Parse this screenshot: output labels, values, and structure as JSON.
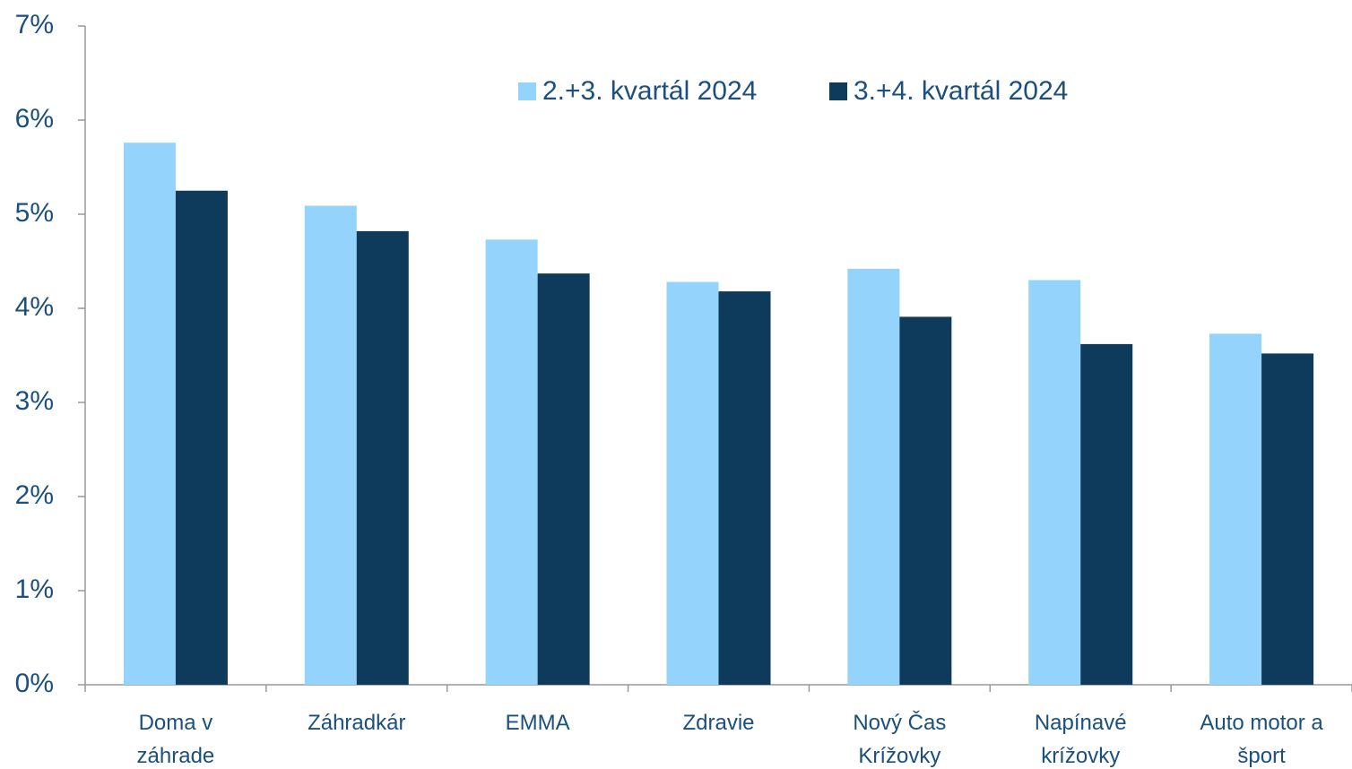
{
  "chart_data": {
    "type": "bar",
    "categories": [
      "Doma v\nzáhrade",
      "Záhradkár",
      "EMMA",
      "Zdravie",
      "Nový Čas\nKrížovky",
      "Napínavé\nkrížovky",
      "Auto motor a\nšport"
    ],
    "series": [
      {
        "name": "2.+3. kvartál 2024",
        "color": "#93d3fc",
        "values": [
          5.76,
          5.09,
          4.73,
          4.28,
          4.42,
          4.3,
          3.73
        ]
      },
      {
        "name": "3.+4. kvartál 2024",
        "color": "#0e3a5c",
        "values": [
          5.25,
          4.82,
          4.37,
          4.18,
          3.91,
          3.62,
          3.52
        ]
      }
    ],
    "ylim": [
      0,
      7
    ],
    "yticks": [
      {
        "value": 0,
        "label": "0%"
      },
      {
        "value": 1,
        "label": "1%"
      },
      {
        "value": 2,
        "label": "2%"
      },
      {
        "value": 3,
        "label": "3%"
      },
      {
        "value": 4,
        "label": "4%"
      },
      {
        "value": 5,
        "label": "5%"
      },
      {
        "value": 6,
        "label": "6%"
      },
      {
        "value": 7,
        "label": "7%"
      }
    ],
    "grid": false,
    "legend": "top"
  }
}
